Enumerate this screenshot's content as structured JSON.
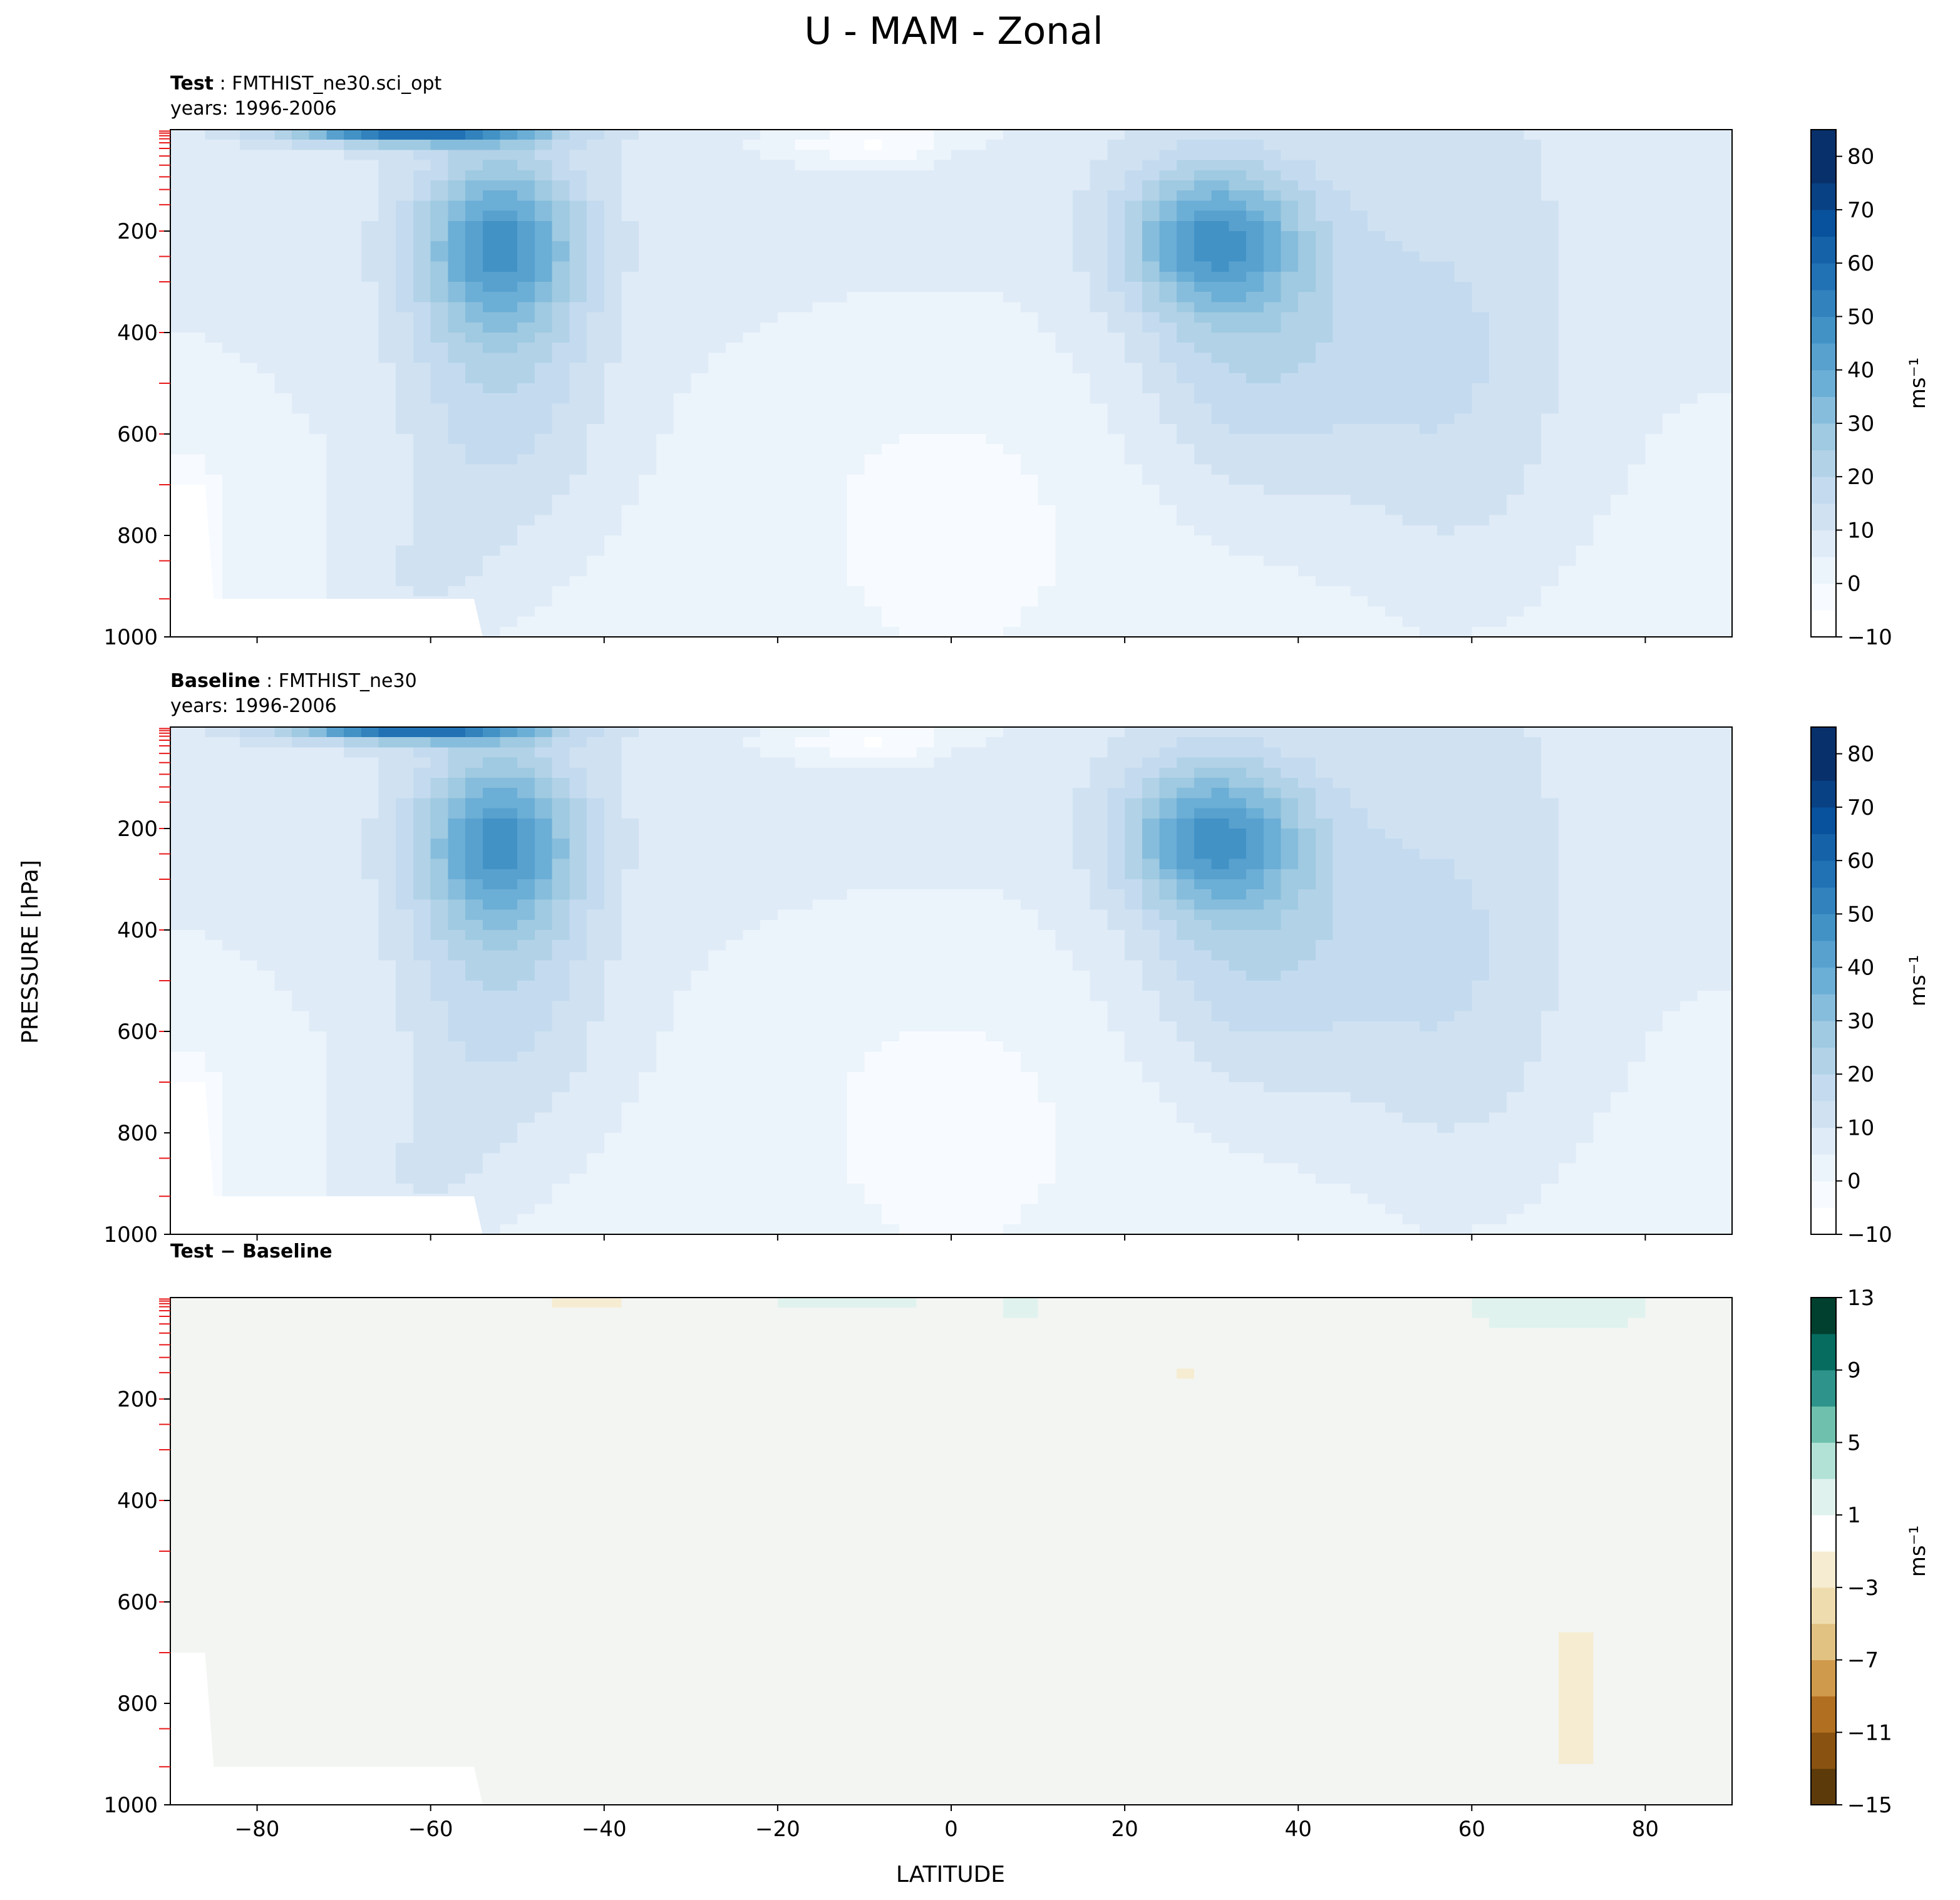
{
  "figure": {
    "title": "U - MAM - Zonal",
    "ylabel": "PRESSURE [hPa]",
    "xlabel": "LATITUDE"
  },
  "chart_data": [
    {
      "type": "heatmap",
      "panel": "test",
      "label_bold": "Test",
      "label_rest": ": FMTHIST_ne30.sci_opt",
      "years": "years: 1996-2006",
      "colormap": "Blues",
      "xlim": [
        -90,
        90
      ],
      "ylim": [
        1000,
        0
      ],
      "xticks": [
        -80,
        -60,
        -40,
        -20,
        0,
        20,
        40,
        60,
        80
      ],
      "yticks": [
        200,
        400,
        600,
        800,
        1000
      ],
      "colorbar": {
        "label": "ms⁻¹",
        "levels": [
          -10,
          -5,
          0,
          5,
          10,
          15,
          20,
          25,
          30,
          35,
          40,
          45,
          50,
          55,
          60,
          65,
          70,
          75,
          80,
          85
        ],
        "ticks": [
          80,
          70,
          60,
          50,
          40,
          30,
          20,
          10,
          0,
          -10
        ],
        "tick_labels": [
          "80",
          "70",
          "60",
          "50",
          "40",
          "30",
          "20",
          "10",
          "0",
          "−10"
        ],
        "colors": [
          "#ffffff",
          "#f7fbff",
          "#ebf3fb",
          "#dfebf7",
          "#d0e2f2",
          "#c4dbef",
          "#b2d2e8",
          "#9fcae1",
          "#87bddc",
          "#6baed6",
          "#58a1cf",
          "#4292c6",
          "#3182bd",
          "#2171b5",
          "#1562a9",
          "#08519c",
          "#084184",
          "#08306b",
          "#08306b"
        ]
      }
    },
    {
      "type": "heatmap",
      "panel": "baseline",
      "label_bold": "Baseline",
      "label_rest": ": FMTHIST_ne30",
      "years": "years: 1996-2006",
      "colormap": "Blues",
      "xlim": [
        -90,
        90
      ],
      "ylim": [
        1000,
        0
      ],
      "xticks": [
        -80,
        -60,
        -40,
        -20,
        0,
        20,
        40,
        60,
        80
      ],
      "yticks": [
        200,
        400,
        600,
        800,
        1000
      ],
      "colorbar": {
        "label": "ms⁻¹",
        "levels": [
          -10,
          -5,
          0,
          5,
          10,
          15,
          20,
          25,
          30,
          35,
          40,
          45,
          50,
          55,
          60,
          65,
          70,
          75,
          80,
          85
        ],
        "ticks": [
          80,
          70,
          60,
          50,
          40,
          30,
          20,
          10,
          0,
          -10
        ],
        "tick_labels": [
          "80",
          "70",
          "60",
          "50",
          "40",
          "30",
          "20",
          "10",
          "0",
          "−10"
        ],
        "colors": [
          "#ffffff",
          "#f7fbff",
          "#ebf3fb",
          "#dfebf7",
          "#d0e2f2",
          "#c4dbef",
          "#b2d2e8",
          "#9fcae1",
          "#87bddc",
          "#6baed6",
          "#58a1cf",
          "#4292c6",
          "#3182bd",
          "#2171b5",
          "#1562a9",
          "#08519c",
          "#084184",
          "#08306b",
          "#08306b"
        ]
      }
    },
    {
      "type": "heatmap",
      "panel": "difference",
      "label_bold": "Test − Baseline",
      "label_rest": "",
      "years": "",
      "colormap": "BrBG",
      "xlim": [
        -90,
        90
      ],
      "ylim": [
        1000,
        0
      ],
      "xticks": [
        -80,
        -60,
        -40,
        -20,
        0,
        20,
        40,
        60,
        80
      ],
      "xtick_labels": [
        "−80",
        "−60",
        "−40",
        "−20",
        "0",
        "20",
        "40",
        "60",
        "80"
      ],
      "yticks": [
        200,
        400,
        600,
        800,
        1000
      ],
      "colorbar": {
        "label": "ms⁻¹",
        "levels": [
          -15,
          -13,
          -11,
          -9,
          -7,
          -5,
          -3,
          -1,
          1,
          3,
          5,
          7,
          9,
          11,
          13
        ],
        "ticks": [
          13,
          9,
          5,
          1,
          -3,
          -7,
          -11,
          -15
        ],
        "tick_labels": [
          "13",
          "9",
          "5",
          "1",
          "−3",
          "−7",
          "−11",
          "−15"
        ],
        "colors": [
          "#5c3a09",
          "#8a5210",
          "#b16f21",
          "#cf9a4c",
          "#e1c282",
          "#efdcae",
          "#f6ecd2",
          "#ffffff",
          "#e0f2ee",
          "#b2e2d6",
          "#6fc1ad",
          "#2e938a",
          "#066c60",
          "#01402f"
        ]
      }
    }
  ]
}
